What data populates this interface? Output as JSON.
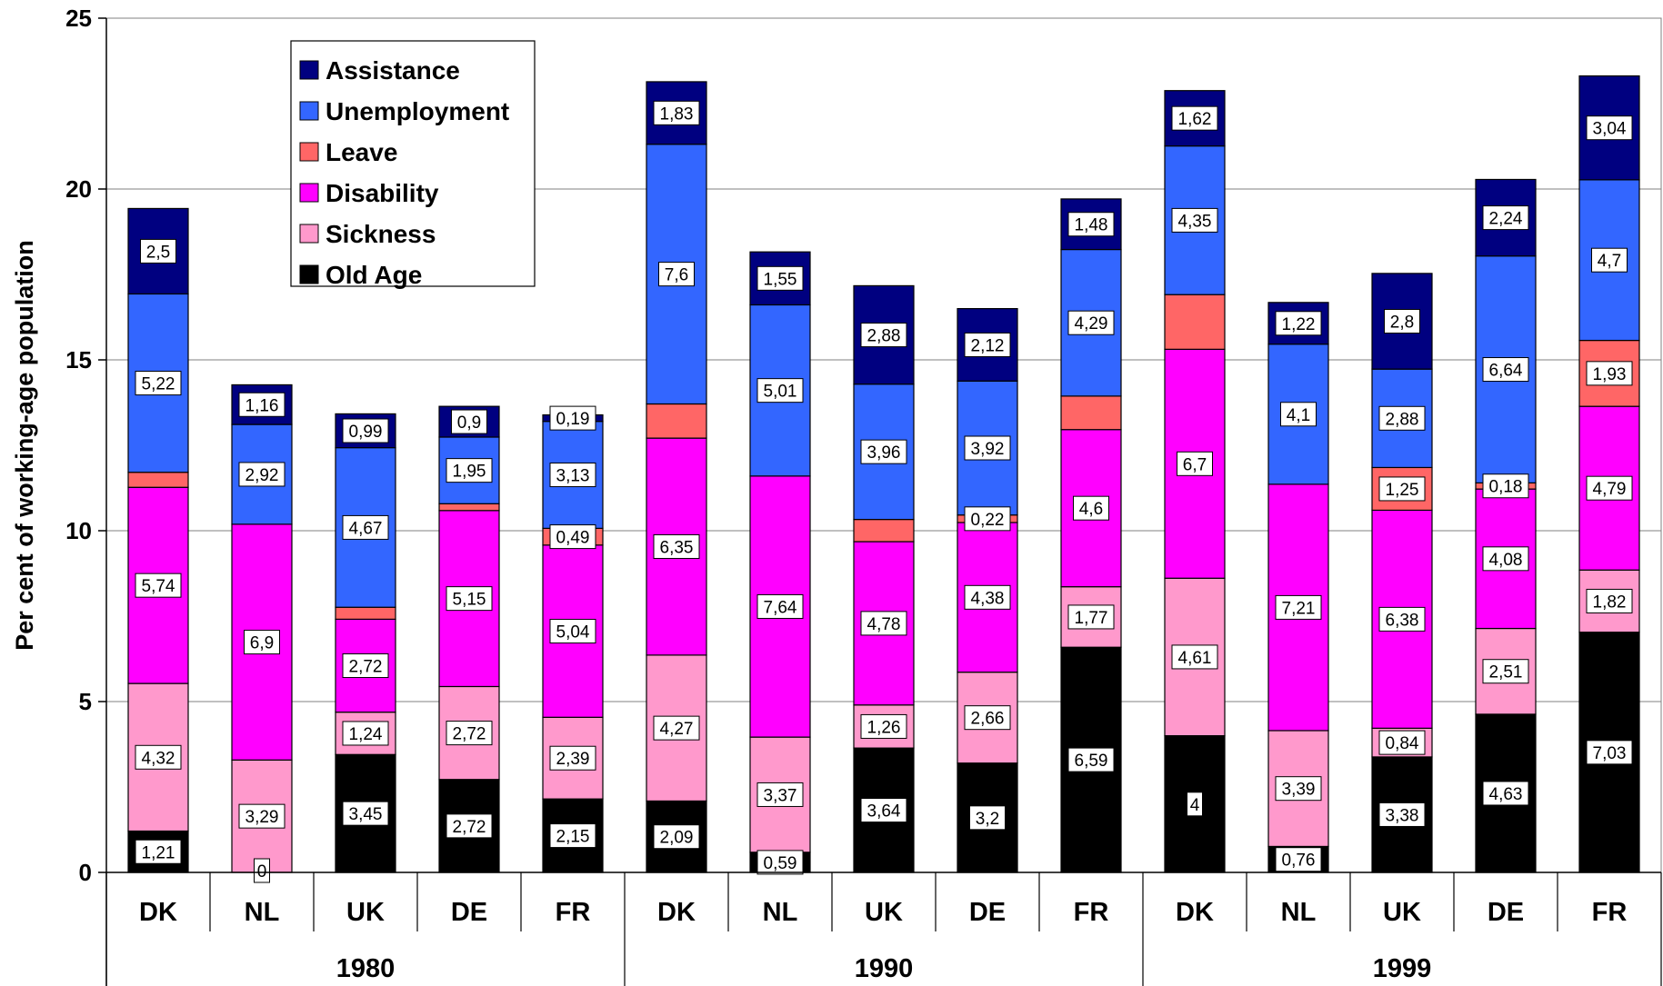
{
  "chart_data": {
    "type": "bar",
    "stacked": true,
    "ylabel": "Per cent of working-age population",
    "ylim": [
      0,
      25
    ],
    "yticks": [
      0,
      5,
      10,
      15,
      20,
      25
    ],
    "grid": true,
    "legend_position": "top-left",
    "groups": [
      {
        "label": "1980",
        "categories": [
          "DK",
          "NL",
          "UK",
          "DE",
          "FR"
        ]
      },
      {
        "label": "1990",
        "categories": [
          "DK",
          "NL",
          "UK",
          "DE",
          "FR"
        ]
      },
      {
        "label": "1999",
        "categories": [
          "DK",
          "NL",
          "UK",
          "DE",
          "FR"
        ]
      }
    ],
    "series": [
      {
        "name": "Old Age",
        "color": "#000000",
        "values": [
          1.21,
          0,
          3.45,
          2.72,
          2.15,
          2.09,
          0.59,
          3.64,
          3.2,
          6.59,
          4,
          0.76,
          3.38,
          4.63,
          7.03
        ],
        "labels": [
          "1,21",
          "0",
          "3,45",
          "2,72",
          "2,15",
          "2,09",
          "0,59",
          "3,64",
          "3,2",
          "6,59",
          "4",
          "0,76",
          "3,38",
          "4,63",
          "7,03"
        ]
      },
      {
        "name": "Sickness",
        "color": "#ff99cc",
        "values": [
          4.32,
          3.29,
          1.24,
          2.72,
          2.39,
          4.27,
          3.37,
          1.26,
          2.66,
          1.77,
          4.61,
          3.39,
          0.84,
          2.51,
          1.82
        ],
        "labels": [
          "4,32",
          "3,29",
          "1,24",
          "2,72",
          "2,39",
          "4,27",
          "3,37",
          "1,26",
          "2,66",
          "1,77",
          "4,61",
          "3,39",
          "0,84",
          "2,51",
          "1,82"
        ]
      },
      {
        "name": "Disability",
        "color": "#ff00ff",
        "values": [
          5.74,
          6.9,
          2.72,
          5.15,
          5.04,
          6.35,
          7.64,
          4.78,
          4.38,
          4.6,
          6.7,
          7.21,
          6.38,
          4.08,
          4.79
        ],
        "labels": [
          "5,74",
          "6,9",
          "2,72",
          "5,15",
          "5,04",
          "6,35",
          "7,64",
          "4,78",
          "4,38",
          "4,6",
          "6,7",
          "7,21",
          "6,38",
          "4,08",
          "4,79"
        ]
      },
      {
        "name": "Leave",
        "color": "#ff6666",
        "values": [
          0.44,
          0,
          0.35,
          0.2,
          0.49,
          1.0,
          0,
          0.65,
          0.22,
          0.98,
          1.6,
          0,
          1.25,
          0.18,
          1.93
        ],
        "labels": [
          "",
          "",
          "",
          "",
          "0,49",
          "",
          "",
          "",
          "0,22",
          "",
          "",
          "",
          "1,25",
          "0,18",
          "1,93"
        ]
      },
      {
        "name": "Unemployment",
        "color": "#3366ff",
        "values": [
          5.22,
          2.92,
          4.67,
          1.95,
          3.13,
          7.6,
          5.01,
          3.96,
          3.92,
          4.29,
          4.35,
          4.1,
          2.88,
          6.64,
          4.7
        ],
        "labels": [
          "5,22",
          "2,92",
          "4,67",
          "1,95",
          "3,13",
          "7,6",
          "5,01",
          "3,96",
          "3,92",
          "4,29",
          "4,35",
          "4,1",
          "2,88",
          "6,64",
          "4,7"
        ]
      },
      {
        "name": "Assistance",
        "color": "#000080",
        "values": [
          2.5,
          1.16,
          0.99,
          0.9,
          0.19,
          1.83,
          1.55,
          2.88,
          2.12,
          1.48,
          1.62,
          1.22,
          2.8,
          2.24,
          3.04
        ],
        "labels": [
          "2,5",
          "1,16",
          "0,99",
          "0,9",
          "0,19",
          "1,83",
          "1,55",
          "2,88",
          "2,12",
          "1,48",
          "1,62",
          "1,22",
          "2,8",
          "2,24",
          "3,04"
        ]
      }
    ],
    "legend_order": [
      "Assistance",
      "Unemployment",
      "Leave",
      "Disability",
      "Sickness",
      "Old Age"
    ]
  }
}
